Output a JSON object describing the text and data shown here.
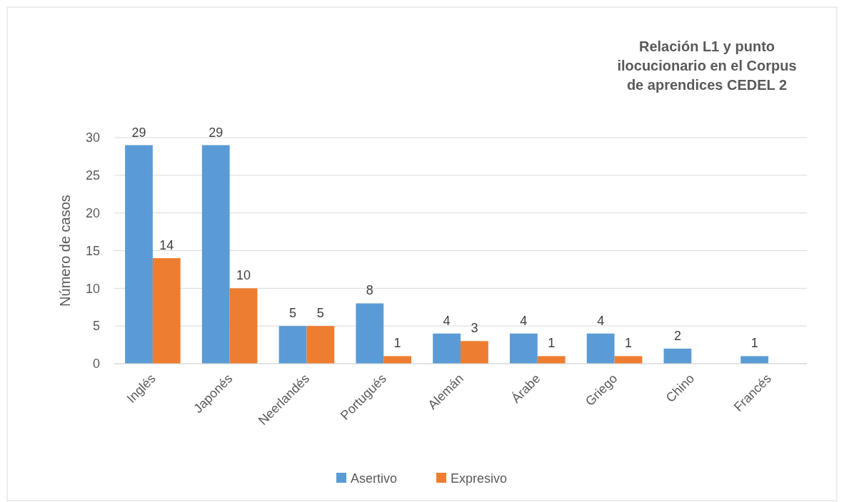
{
  "chart_data": {
    "type": "bar",
    "title": "Relación L1 y punto ilocucionario en el Corpus de aprendices CEDEL 2",
    "ylabel": "Número de casos",
    "categories": [
      "Inglés",
      "Japonés",
      "Neerlandés",
      "Portugués",
      "Alemán",
      "Árabe",
      "Griego",
      "Chino",
      "Francés"
    ],
    "series": [
      {
        "name": "Asertivo",
        "color": "#5b9bd5",
        "values": [
          29,
          29,
          5,
          8,
          4,
          4,
          4,
          2,
          1
        ]
      },
      {
        "name": "Expresivo",
        "color": "#ed7d31",
        "values": [
          14,
          10,
          5,
          1,
          3,
          1,
          1,
          null,
          null
        ]
      }
    ],
    "ylim": [
      0,
      30
    ],
    "yticks": [
      0,
      5,
      10,
      15,
      20,
      25,
      30
    ],
    "grid": "y",
    "legend": "bottom",
    "data_labels": true
  }
}
